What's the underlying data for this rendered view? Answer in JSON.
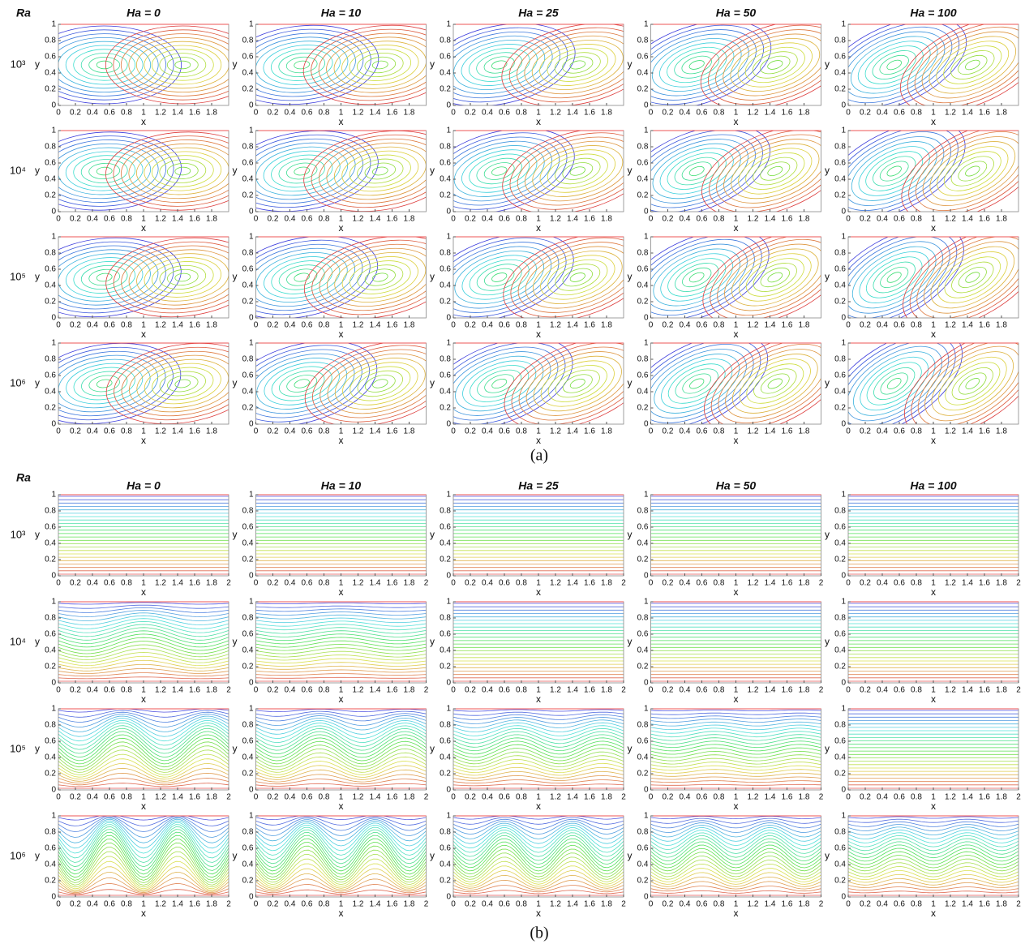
{
  "figure": {
    "row_header": "Ra",
    "panels": [
      {
        "label": "(a)",
        "columns": [
          "Ha = 0",
          "Ha = 10",
          "Ha = 25",
          "Ha = 50",
          "Ha = 100"
        ],
        "rows": [
          "10³",
          "10⁴",
          "10⁵",
          "10⁶"
        ],
        "xlabel": "x",
        "ylabel": "y",
        "xlim": [
          0,
          2
        ],
        "ylim": [
          0,
          1
        ],
        "xticks": [
          0,
          0.2,
          0.4,
          0.6,
          0.8,
          1,
          1.2,
          1.4,
          1.6,
          1.8
        ],
        "yticks": [
          0,
          0.2,
          0.4,
          0.6,
          0.8,
          1
        ]
      },
      {
        "label": "(b)",
        "columns": [
          "Ha = 0",
          "Ha = 10",
          "Ha = 25",
          "Ha = 50",
          "Ha = 100"
        ],
        "rows": [
          "10³",
          "10⁴",
          "10⁵",
          "10⁶"
        ],
        "xlabel": "x",
        "ylabel": "y",
        "xlim": [
          0,
          2
        ],
        "ylim": [
          0,
          1
        ],
        "xticks": [
          0,
          0.2,
          0.4,
          0.6,
          0.8,
          1,
          1.2,
          1.4,
          1.6,
          1.8,
          2
        ],
        "yticks": [
          0,
          0.2,
          0.4,
          0.6,
          0.8,
          1
        ]
      }
    ]
  }
}
